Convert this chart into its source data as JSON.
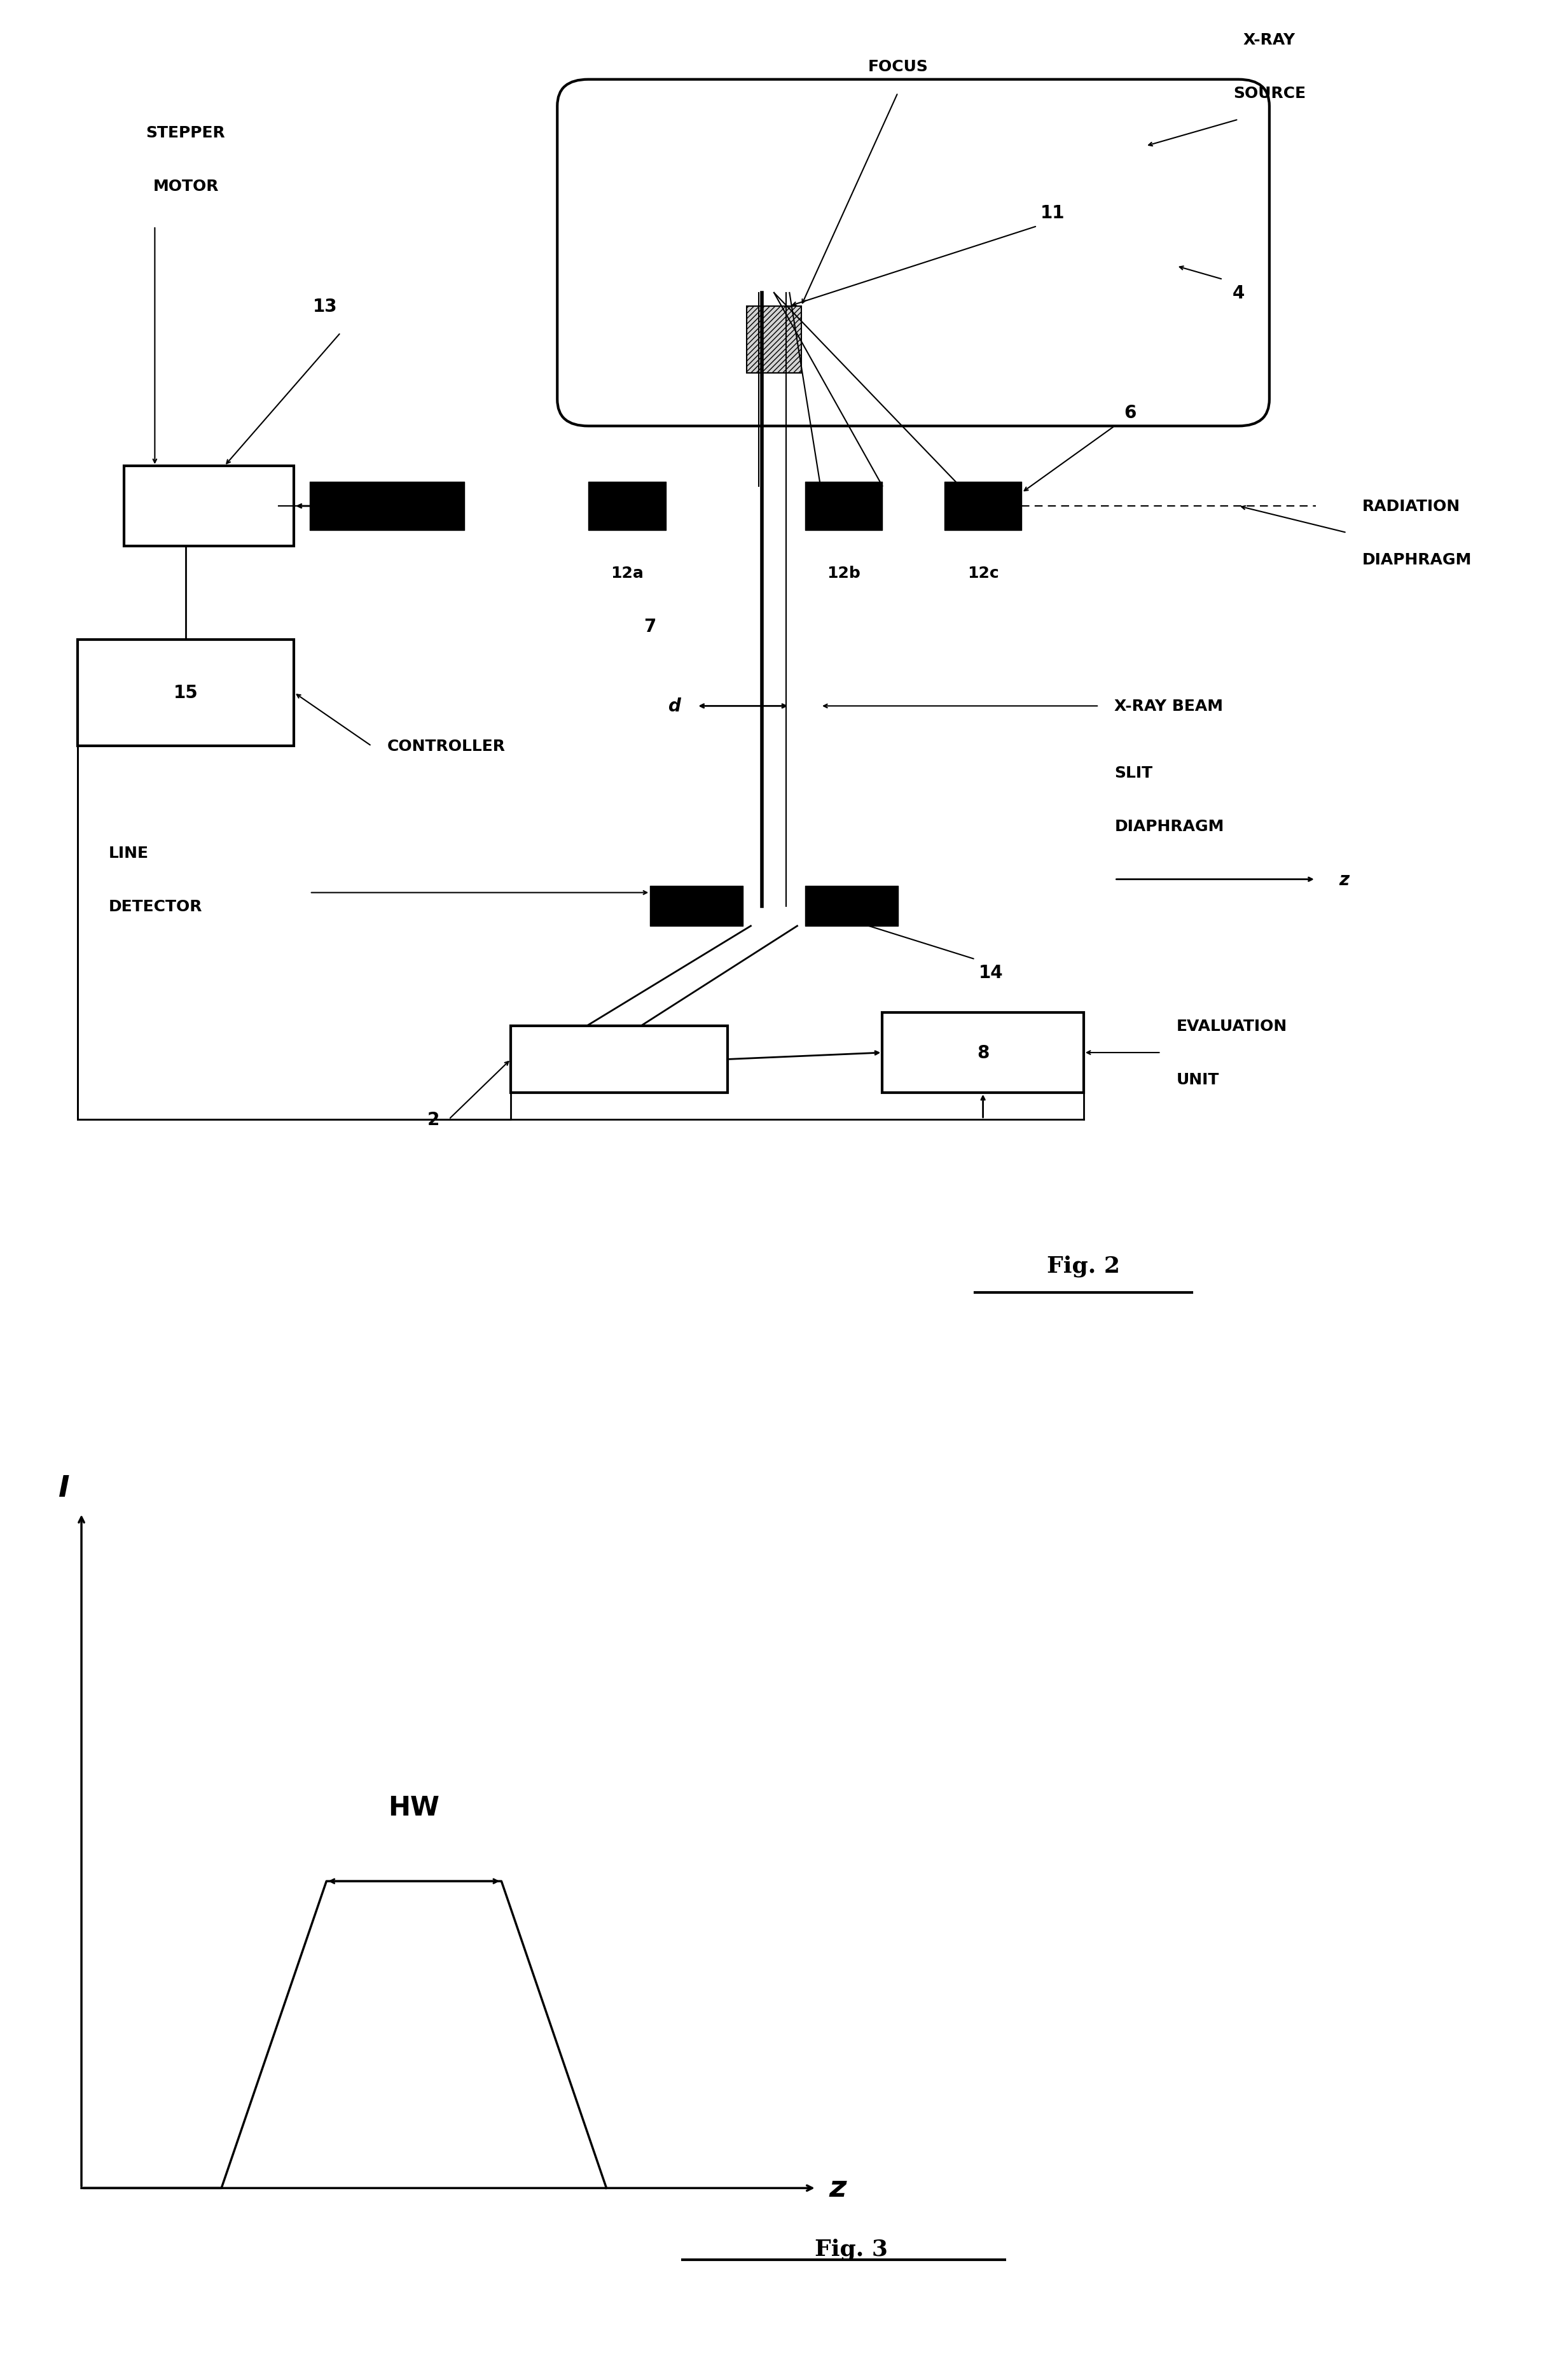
{
  "fig_width": 24.34,
  "fig_height": 37.41,
  "bg_color": "#ffffff",
  "fig2_label": "Fig. 2",
  "fig3_label": "Fig. 3",
  "labels": {
    "stepper_motor": [
      "STEPPER",
      "MOTOR"
    ],
    "focus": "FOCUS",
    "xray_source": [
      "X-RAY",
      "SOURCE"
    ],
    "controller": "CONTROLLER",
    "line_detector": [
      "LINE",
      "DETECTOR"
    ],
    "radiation_diaphragm": [
      "RADIATION",
      "DIAPHRAGM"
    ],
    "xray_beam": "X-RAY BEAM",
    "slit_diaphragm": [
      "SLIT",
      "DIAPHRAGM"
    ],
    "evaluation_unit": [
      "EVALUATION",
      "UNIT"
    ],
    "num_11": "11",
    "num_4": "4",
    "num_6": "6",
    "num_13": "13",
    "num_7": "7",
    "num_12a": "12a",
    "num_12b": "12b",
    "num_12c": "12c",
    "num_d": "d",
    "num_15": "15",
    "num_14": "14",
    "num_2": "2",
    "num_8": "8",
    "axis_l": "I",
    "axis_z": "z",
    "hw_label": "HW"
  }
}
